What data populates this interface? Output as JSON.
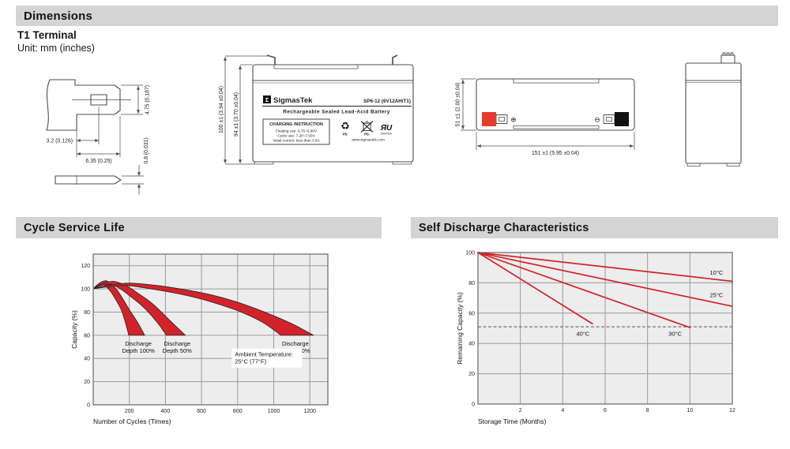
{
  "colors": {
    "header_bg": "#d4d4d4",
    "accent_red": "#d2232a",
    "terminal_red": "#e8392f",
    "plot_bg": "#ededed",
    "grid": "#9b9b9b",
    "line_dark": "#4d4d4d"
  },
  "sections": {
    "dimensions": {
      "title": "Dimensions",
      "subtitle": "T1 Terminal",
      "unit_note": "Unit: mm (inches)"
    },
    "cycle": {
      "title": "Cycle Service Life"
    },
    "self_discharge": {
      "title": "Self Discharge Characteristics"
    }
  },
  "terminal_drawing": {
    "dim_tab_width": "4.75 (0.187)",
    "dim_hole_offset": "3.2 (0.126)",
    "dim_tab_length": "6.35 (0.25)",
    "dim_tab_thickness": "0.8 (0.031)"
  },
  "front_view": {
    "logo_glyph": "Σ",
    "brand": "SigmasTek",
    "model": "SP6-12 (6V12AH/T1)",
    "type_line": "Rechargeable Sealed Lead-Acid Battery",
    "charging_title": "CHARGING INSTRUCTION",
    "charging_line1": "Floating use: 6.75~6.90V",
    "charging_line2": "Cycle use: 7.20~7.50V",
    "charging_line3": "Initial current: less than 3.6A",
    "recycle_glyph": "♻",
    "pb_recycle_label": "Pb.",
    "pb_bin_label": "Pb.",
    "ul_glyph": "ЯU",
    "ul_code": "MH47629",
    "website": "www.sigmastek.com",
    "dim_total_height": "100 ±1 (3.94 ±0.04)",
    "dim_case_height": "94 ±1 (3.70 ±0.04)"
  },
  "top_view": {
    "dim_width": "51 ±1 (2.00 ±0.04)",
    "dim_length": "151 ±1 (5.95 ±0.04)",
    "positive_symbol": "⊕",
    "negative_symbol": "⊖"
  },
  "chart_data": [
    {
      "type": "area",
      "title": "Cycle Service Life",
      "xlabel": "Number of Cycles (Times)",
      "ylabel": "Capacity (%)",
      "xlim": [
        0,
        1300
      ],
      "ylim": [
        0,
        130
      ],
      "xticks": [
        200,
        400,
        600,
        800,
        1000,
        1200
      ],
      "yticks": [
        0,
        20,
        40,
        60,
        80,
        100,
        120
      ],
      "grid": true,
      "bands": [
        {
          "name": "Discharge Depth 100%",
          "upper": [
            [
              0,
              100
            ],
            [
              30,
              104.5
            ],
            [
              70,
              107
            ],
            [
              110,
              103
            ],
            [
              150,
              95
            ],
            [
              200,
              82
            ],
            [
              250,
              70
            ],
            [
              285,
              60
            ]
          ],
          "lower": [
            [
              0,
              100
            ],
            [
              25,
              102.5
            ],
            [
              55,
              104
            ],
            [
              90,
              99
            ],
            [
              120,
              92
            ],
            [
              155,
              82
            ],
            [
              180,
              70
            ],
            [
              197,
              60
            ]
          ]
        },
        {
          "name": "Discharge Depth 50%",
          "upper": [
            [
              0,
              100
            ],
            [
              45,
              104
            ],
            [
              110,
              106.5
            ],
            [
              180,
              103
            ],
            [
              250,
              96
            ],
            [
              330,
              87
            ],
            [
              430,
              72
            ],
            [
              510,
              60
            ]
          ],
          "lower": [
            [
              0,
              100
            ],
            [
              40,
              102.5
            ],
            [
              95,
              104
            ],
            [
              150,
              100
            ],
            [
              210,
              93
            ],
            [
              280,
              84
            ],
            [
              355,
              71
            ],
            [
              405,
              60
            ]
          ]
        },
        {
          "name": "Discharge Depth 30%",
          "upper": [
            [
              0,
              100
            ],
            [
              80,
              103
            ],
            [
              200,
              105
            ],
            [
              350,
              103
            ],
            [
              500,
              99.5
            ],
            [
              650,
              95
            ],
            [
              800,
              88.5
            ],
            [
              950,
              80
            ],
            [
              1100,
              70
            ],
            [
              1220,
              60
            ]
          ],
          "lower": [
            [
              0,
              100
            ],
            [
              70,
              101.5
            ],
            [
              180,
              103
            ],
            [
              320,
              100
            ],
            [
              450,
              96.5
            ],
            [
              580,
              92
            ],
            [
              700,
              86.5
            ],
            [
              820,
              80
            ],
            [
              940,
              71
            ],
            [
              1040,
              60
            ]
          ]
        }
      ],
      "annotations": [
        {
          "lines": [
            "Discharge",
            "Depth 100%"
          ],
          "x": 250,
          "y": 51,
          "align": "middle",
          "bg": false
        },
        {
          "lines": [
            "Discharge",
            "Depth 50%"
          ],
          "x": 465,
          "y": 51,
          "align": "middle",
          "bg": false
        },
        {
          "lines": [
            "Discharge",
            "Depth 30%"
          ],
          "x": 1120,
          "y": 51,
          "align": "middle",
          "bg": false
        },
        {
          "lines": [
            "Ambient Temperature:",
            "25°C (77°F)"
          ],
          "x": 785,
          "y": 42,
          "align": "left",
          "bg": true
        }
      ]
    },
    {
      "type": "line",
      "title": "Self Discharge Characteristics",
      "xlabel": "Storage Time (Months)",
      "ylabel": "Remaining Capacity (%)",
      "xlim": [
        0,
        12
      ],
      "ylim": [
        0,
        100
      ],
      "xticks": [
        2,
        4,
        6,
        8,
        10,
        12
      ],
      "yticks": [
        0,
        20,
        40,
        60,
        80,
        100
      ],
      "grid": true,
      "series": [
        {
          "name": "10°C",
          "points": [
            [
              0,
              100
            ],
            [
              12,
              81
            ]
          ],
          "label_x": 11.25,
          "label_y": 85.5
        },
        {
          "name": "25°C",
          "points": [
            [
              0,
              100
            ],
            [
              12,
              64.5
            ]
          ],
          "label_x": 11.25,
          "label_y": 70.5
        },
        {
          "name": "30°C",
          "points": [
            [
              0,
              100
            ],
            [
              10,
              50.5
            ]
          ],
          "label_x": 9.3,
          "label_y": 45
        },
        {
          "name": "40°C",
          "points": [
            [
              0,
              100
            ],
            [
              5.4,
              53
            ]
          ],
          "label_x": 4.95,
          "label_y": 45
        }
      ],
      "reference_line_y": 51
    }
  ]
}
